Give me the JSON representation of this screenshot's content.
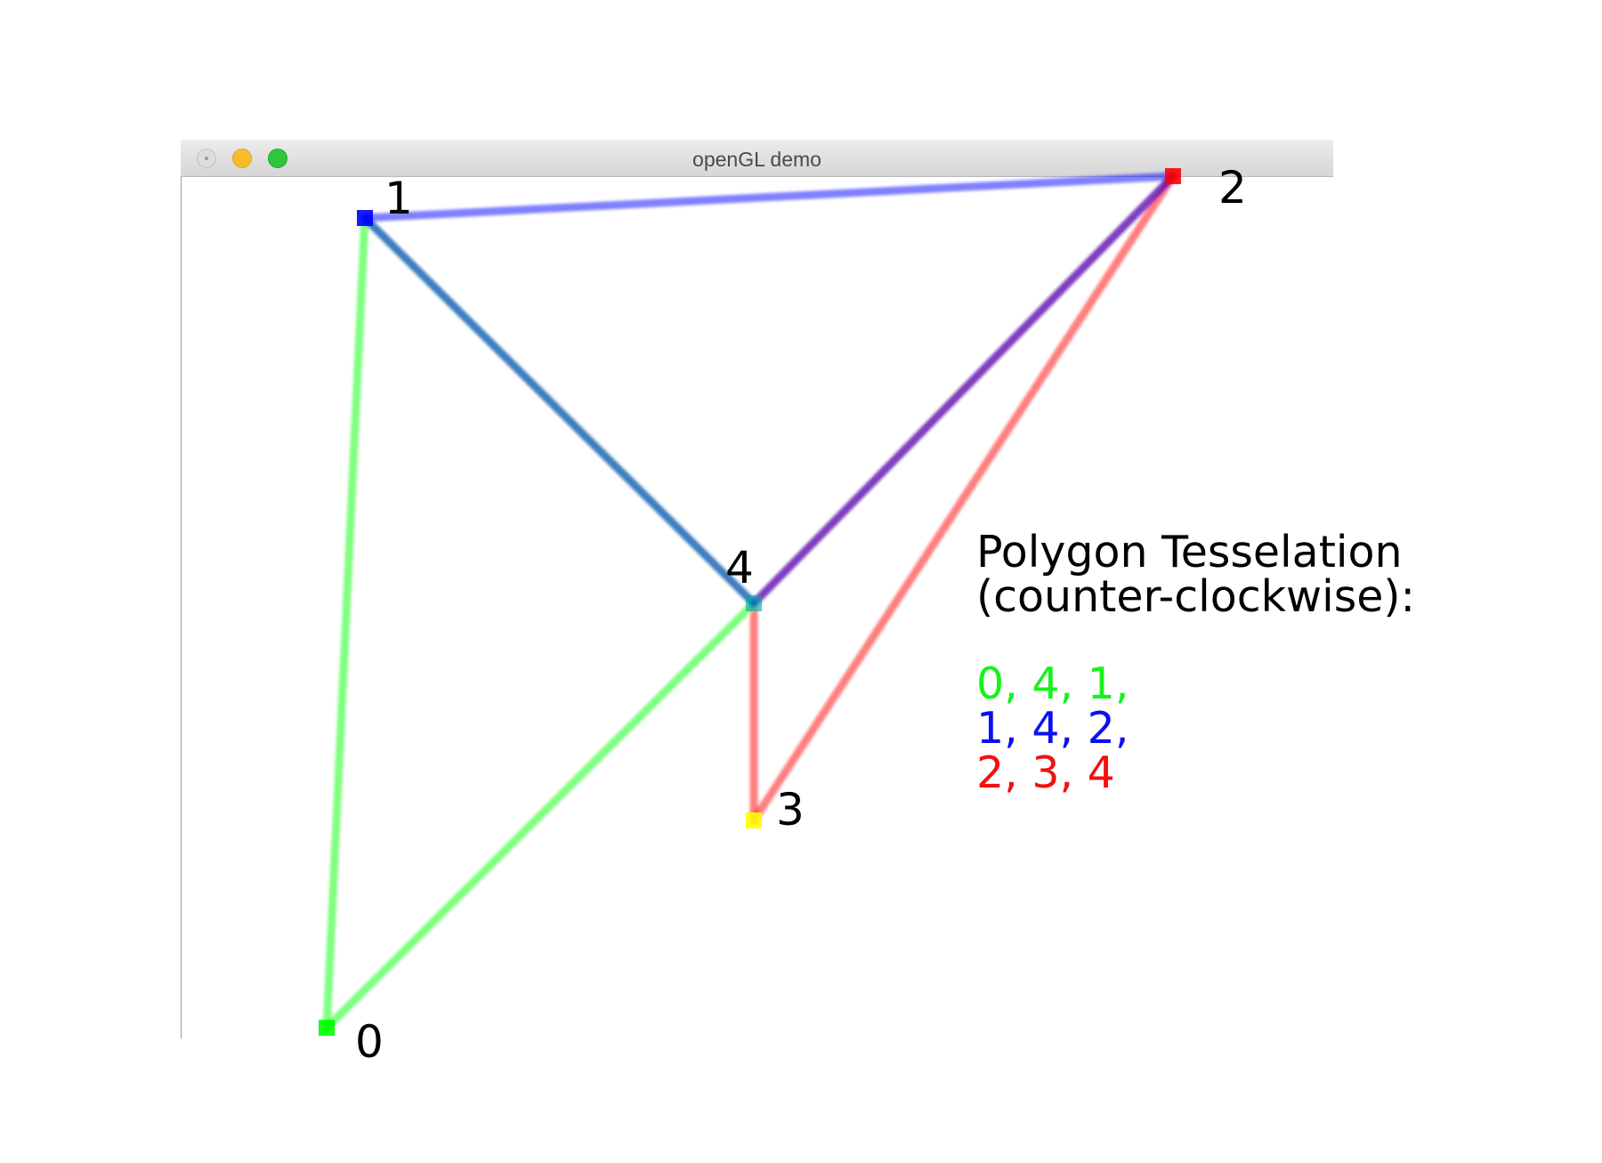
{
  "window": {
    "title": "openGL demo"
  },
  "vertices": [
    {
      "label": "0",
      "color": "#00ff00"
    },
    {
      "label": "1",
      "color": "#0000ff"
    },
    {
      "label": "2",
      "color": "#ff0000"
    },
    {
      "label": "3",
      "color": "#ffff00"
    },
    {
      "label": "4",
      "color": "#00aaaa"
    }
  ],
  "legend": {
    "title_line1": "Polygon Tesselation",
    "title_line2": "(counter-clockwise):",
    "triangles": [
      {
        "text": "0, 4, 1,",
        "color": "#17f21a"
      },
      {
        "text": "1, 4, 2,",
        "color": "#0b10f0"
      },
      {
        "text": "2, 3, 4",
        "color": "#f21010"
      }
    ]
  },
  "triangles": [
    {
      "vertices": [
        0,
        4,
        1
      ],
      "color": "#00ff00"
    },
    {
      "vertices": [
        1,
        4,
        2
      ],
      "color": "#0000ff"
    },
    {
      "vertices": [
        2,
        3,
        4
      ],
      "color": "#ff0000"
    }
  ]
}
